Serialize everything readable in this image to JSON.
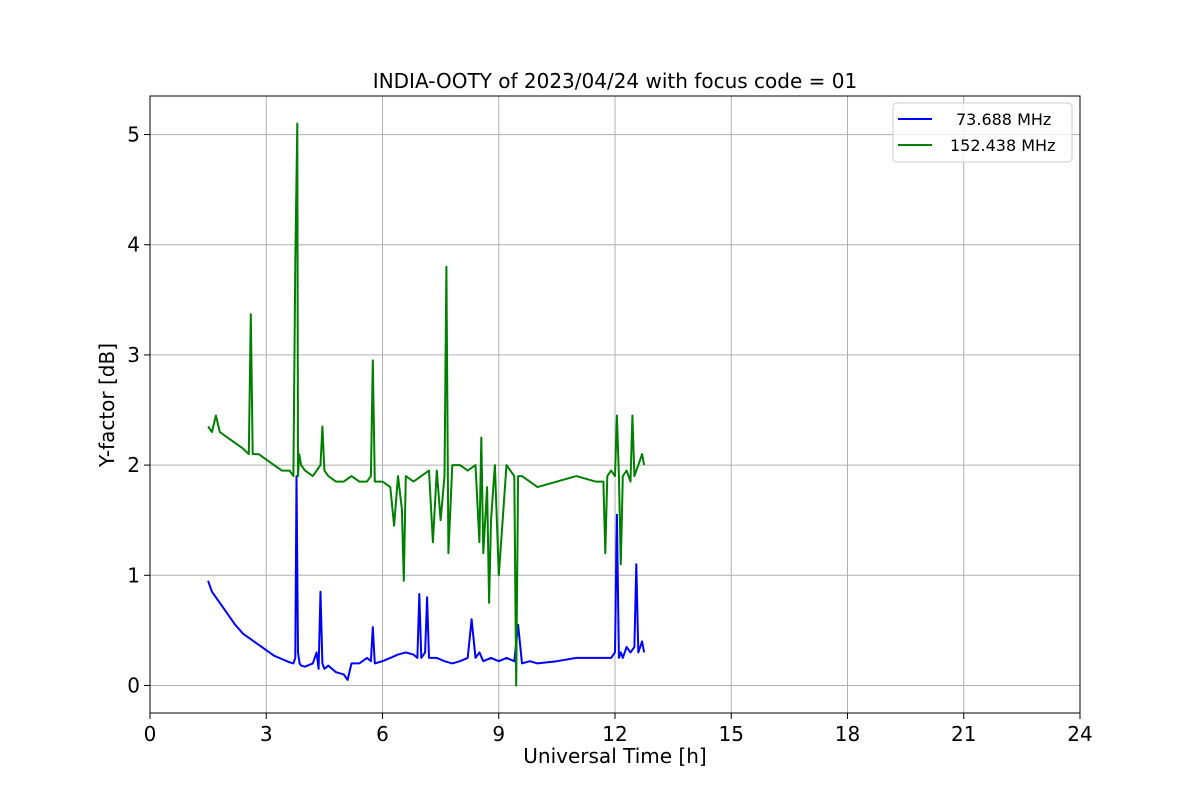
{
  "chart_data": {
    "type": "line",
    "title": "INDIA-OOTY of 2023/04/24 with focus code = 01",
    "xlabel": "Universal Time [h]",
    "ylabel": "Y-factor [dB]",
    "xlim": [
      0,
      24
    ],
    "ylim": [
      -0.25,
      5.35
    ],
    "xticks": [
      "0",
      "3",
      "6",
      "9",
      "12",
      "15",
      "18",
      "21",
      "24"
    ],
    "yticks": [
      "0",
      "1",
      "2",
      "3",
      "4",
      "5"
    ],
    "grid": true,
    "legend_position": "top-right",
    "series": [
      {
        "name": "73.688 MHz",
        "color": "#0000ff",
        "x": [
          1.5,
          1.6,
          1.8,
          2.0,
          2.2,
          2.4,
          2.6,
          2.8,
          3.0,
          3.2,
          3.4,
          3.6,
          3.7,
          3.75,
          3.78,
          3.82,
          3.86,
          3.9,
          4.0,
          4.2,
          4.3,
          4.35,
          4.4,
          4.45,
          4.5,
          4.6,
          4.7,
          4.8,
          5.0,
          5.1,
          5.2,
          5.4,
          5.6,
          5.7,
          5.75,
          5.8,
          6.0,
          6.2,
          6.4,
          6.6,
          6.8,
          6.9,
          6.95,
          7.0,
          7.1,
          7.15,
          7.2,
          7.4,
          7.6,
          7.8,
          8.0,
          8.2,
          8.3,
          8.4,
          8.5,
          8.6,
          8.8,
          9.0,
          9.2,
          9.4,
          9.5,
          9.6,
          9.8,
          10.0,
          10.5,
          11.0,
          11.5,
          11.9,
          12.0,
          12.05,
          12.1,
          12.15,
          12.2,
          12.3,
          12.4,
          12.5,
          12.55,
          12.6,
          12.7,
          12.75
        ],
        "y": [
          0.95,
          0.85,
          0.75,
          0.65,
          0.55,
          0.47,
          0.42,
          0.37,
          0.32,
          0.27,
          0.24,
          0.21,
          0.2,
          0.25,
          1.9,
          0.3,
          0.2,
          0.18,
          0.17,
          0.2,
          0.3,
          0.15,
          0.85,
          0.2,
          0.15,
          0.18,
          0.15,
          0.12,
          0.1,
          0.05,
          0.2,
          0.2,
          0.25,
          0.22,
          0.53,
          0.2,
          0.22,
          0.25,
          0.28,
          0.3,
          0.28,
          0.25,
          0.83,
          0.25,
          0.3,
          0.8,
          0.25,
          0.25,
          0.22,
          0.2,
          0.22,
          0.25,
          0.6,
          0.25,
          0.3,
          0.22,
          0.25,
          0.22,
          0.25,
          0.22,
          0.55,
          0.2,
          0.22,
          0.2,
          0.22,
          0.25,
          0.25,
          0.25,
          0.3,
          1.55,
          0.25,
          0.3,
          0.25,
          0.35,
          0.3,
          0.35,
          1.1,
          0.3,
          0.4,
          0.3
        ]
      },
      {
        "name": "152.438 MHz",
        "color": "#008000",
        "x": [
          1.5,
          1.6,
          1.7,
          1.8,
          2.0,
          2.2,
          2.4,
          2.55,
          2.6,
          2.65,
          2.8,
          3.0,
          3.2,
          3.4,
          3.6,
          3.7,
          3.75,
          3.8,
          3.82,
          3.85,
          3.9,
          4.0,
          4.2,
          4.4,
          4.45,
          4.5,
          4.6,
          4.8,
          5.0,
          5.2,
          5.4,
          5.6,
          5.7,
          5.75,
          5.8,
          6.0,
          6.2,
          6.3,
          6.4,
          6.5,
          6.55,
          6.6,
          6.8,
          7.0,
          7.2,
          7.3,
          7.4,
          7.5,
          7.6,
          7.65,
          7.7,
          7.8,
          8.0,
          8.2,
          8.4,
          8.5,
          8.55,
          8.6,
          8.7,
          8.75,
          8.8,
          8.9,
          9.0,
          9.2,
          9.4,
          9.45,
          9.5,
          9.6,
          9.8,
          10.0,
          10.5,
          11.0,
          11.5,
          11.7,
          11.75,
          11.8,
          11.9,
          12.0,
          12.05,
          12.1,
          12.15,
          12.2,
          12.3,
          12.4,
          12.45,
          12.5,
          12.6,
          12.7,
          12.75
        ],
        "y": [
          2.35,
          2.3,
          2.45,
          2.3,
          2.25,
          2.2,
          2.15,
          2.1,
          3.37,
          2.1,
          2.1,
          2.05,
          2.0,
          1.95,
          1.95,
          1.9,
          3.85,
          5.1,
          1.9,
          2.1,
          2.0,
          1.95,
          1.9,
          2.0,
          2.35,
          1.95,
          1.9,
          1.85,
          1.85,
          1.9,
          1.85,
          1.85,
          1.9,
          2.95,
          1.85,
          1.85,
          1.8,
          1.45,
          1.9,
          1.6,
          0.95,
          1.9,
          1.85,
          1.9,
          1.95,
          1.3,
          1.95,
          1.5,
          1.9,
          3.8,
          1.2,
          2.0,
          2.0,
          1.95,
          2.0,
          1.3,
          2.25,
          1.2,
          1.8,
          0.75,
          1.5,
          2.0,
          1.0,
          2.0,
          1.9,
          0.0,
          1.9,
          1.9,
          1.85,
          1.8,
          1.85,
          1.9,
          1.85,
          1.85,
          1.2,
          1.9,
          1.95,
          1.9,
          2.45,
          1.9,
          1.1,
          1.9,
          1.95,
          1.85,
          2.45,
          1.9,
          2.0,
          2.1,
          2.0
        ]
      }
    ]
  }
}
